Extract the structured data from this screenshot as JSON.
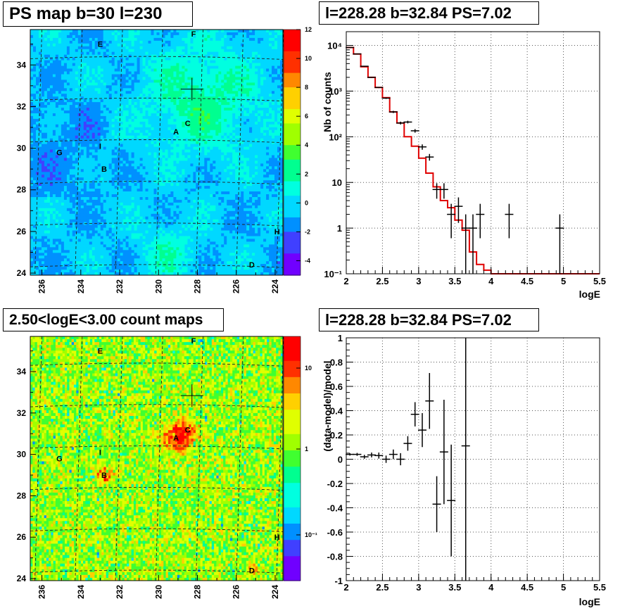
{
  "panels": {
    "ps_map": {
      "title": "PS map b=30 l=230"
    },
    "spectrum": {
      "title": "l=228.28 b=32.84 PS=7.02"
    },
    "count_map": {
      "title": "2.50<logE<3.00 count maps"
    },
    "residual": {
      "title": "l=228.28 b=32.84 PS=7.02"
    }
  },
  "colors": {
    "data": "#000000",
    "model": "#e00000",
    "grid": "#555555",
    "palette": [
      "#7000ff",
      "#4040ff",
      "#0090ff",
      "#00d8ff",
      "#00ffe0",
      "#00ff90",
      "#40ff30",
      "#a0ff00",
      "#e0ff00",
      "#ffd000",
      "#ff8800",
      "#ff3000",
      "#ff0000"
    ]
  },
  "chart_data": [
    {
      "id": "ps_map",
      "type": "heatmap",
      "title": "PS map b=30 l=230",
      "xticks": [
        "236",
        "234",
        "232",
        "230",
        "228",
        "226",
        "224"
      ],
      "yticks": [
        "24",
        "26",
        "28",
        "30",
        "32",
        "34"
      ],
      "xlim": [
        236.6,
        223.6
      ],
      "ylim": [
        23.9,
        35.7
      ],
      "colorbar_ticks": [
        "12",
        "10",
        "8",
        "6",
        "4",
        "2",
        "0",
        "-2",
        "-4"
      ],
      "zlim": [
        -5,
        12
      ],
      "sources": [
        {
          "label": "E",
          "l": 233.0,
          "b": 35.0
        },
        {
          "label": "F",
          "l": 228.2,
          "b": 35.5
        },
        {
          "label": "C",
          "l": 228.5,
          "b": 31.2
        },
        {
          "label": "A",
          "l": 229.1,
          "b": 30.8
        },
        {
          "label": "G",
          "l": 235.1,
          "b": 29.8
        },
        {
          "label": "I",
          "l": 233.0,
          "b": 30.1
        },
        {
          "label": "B",
          "l": 232.8,
          "b": 29.0
        },
        {
          "label": "H",
          "l": 223.9,
          "b": 26.0
        },
        {
          "label": "D",
          "l": 225.2,
          "b": 24.4
        }
      ],
      "crosshair": {
        "l": 228.28,
        "b": 32.84
      }
    },
    {
      "id": "spectrum",
      "type": "line",
      "title": "l=228.28 b=32.84 PS=7.02",
      "xlabel": "logE",
      "ylabel": "Nb of counts",
      "xlim": [
        2,
        5.5
      ],
      "ylim": [
        0.1,
        20000
      ],
      "yscale": "log",
      "xticks": [
        "2",
        "2.5",
        "3",
        "3.5",
        "4",
        "4.5",
        "5",
        "5.5"
      ],
      "yticks": [
        "10⁻¹",
        "1",
        "10",
        "10²",
        "10³",
        "10⁴"
      ],
      "grid": true,
      "series": [
        {
          "kind": "errorbars",
          "x": [
            2.05,
            2.15,
            2.25,
            2.35,
            2.45,
            2.55,
            2.65,
            2.75,
            2.85,
            2.95,
            3.05,
            3.15,
            3.25,
            3.35,
            3.45,
            3.55,
            3.65,
            3.75,
            3.85,
            4.25,
            4.95
          ],
          "y": [
            9000,
            6500,
            3500,
            2000,
            1200,
            700,
            350,
            200,
            210,
            135,
            60,
            36,
            7,
            7,
            2,
            3,
            1,
            1,
            2,
            2,
            1
          ],
          "yerr_lo": [
            95,
            80,
            59,
            45,
            35,
            26,
            19,
            14,
            14,
            12,
            8,
            6,
            2.6,
            2.6,
            1.4,
            1.7,
            1,
            1,
            1.4,
            1.4,
            1
          ],
          "yerr_hi": [
            95,
            80,
            59,
            45,
            35,
            26,
            19,
            14,
            14,
            12,
            8,
            6,
            2.6,
            2.6,
            1.4,
            1.7,
            1,
            1,
            1.4,
            1.4,
            1
          ]
        },
        {
          "kind": "step",
          "x_edges": [
            2.0,
            2.1,
            2.2,
            2.3,
            2.4,
            2.5,
            2.6,
            2.7,
            2.8,
            2.9,
            3.0,
            3.1,
            3.2,
            3.3,
            3.4,
            3.5,
            3.6,
            3.7,
            3.8,
            3.9,
            4.0,
            5.5
          ],
          "y": [
            9000,
            6500,
            3400,
            2000,
            1200,
            720,
            350,
            200,
            100,
            62,
            34,
            16,
            8,
            4,
            2.8,
            1.5,
            0.9,
            0.3,
            0.16,
            0.12,
            0.1
          ]
        }
      ]
    },
    {
      "id": "count_map",
      "type": "heatmap",
      "title": "2.50<logE<3.00 count maps",
      "xticks": [
        "236",
        "234",
        "232",
        "230",
        "228",
        "226",
        "224"
      ],
      "yticks": [
        "24",
        "26",
        "28",
        "30",
        "32",
        "34"
      ],
      "xlim": [
        236.6,
        223.6
      ],
      "ylim": [
        23.9,
        35.7
      ],
      "colorbar_ticks": [
        "10",
        "1",
        "10⁻¹"
      ],
      "zscale": "log",
      "sources": [
        {
          "label": "E",
          "l": 233.0,
          "b": 35.0
        },
        {
          "label": "F",
          "l": 228.2,
          "b": 35.5
        },
        {
          "label": "C",
          "l": 228.5,
          "b": 31.2
        },
        {
          "label": "A",
          "l": 229.1,
          "b": 30.8
        },
        {
          "label": "G",
          "l": 235.1,
          "b": 29.8
        },
        {
          "label": "I",
          "l": 233.0,
          "b": 30.1
        },
        {
          "label": "B",
          "l": 232.8,
          "b": 29.0
        },
        {
          "label": "H",
          "l": 223.9,
          "b": 26.0
        },
        {
          "label": "D",
          "l": 225.2,
          "b": 24.4
        }
      ],
      "crosshair": {
        "l": 228.28,
        "b": 32.84
      }
    },
    {
      "id": "residual",
      "type": "scatter",
      "title": "l=228.28 b=32.84 PS=7.02",
      "xlabel": "logE",
      "ylabel": "(data-model)/model",
      "xlim": [
        2,
        5.5
      ],
      "ylim": [
        -1,
        1
      ],
      "xticks": [
        "2",
        "2.5",
        "3",
        "3.5",
        "4",
        "4.5",
        "5",
        "5.5"
      ],
      "yticks": [
        "-1",
        "-0.8",
        "-0.6",
        "-0.4",
        "-0.2",
        "0",
        "0.2",
        "0.4",
        "0.6",
        "0.8",
        "1"
      ],
      "grid": true,
      "series": [
        {
          "kind": "errorbars",
          "x": [
            2.05,
            2.15,
            2.25,
            2.35,
            2.45,
            2.55,
            2.65,
            2.75,
            2.85,
            2.95,
            3.05,
            3.15,
            3.25,
            3.35,
            3.45,
            3.65
          ],
          "y": [
            0.04,
            0.04,
            0.02,
            0.035,
            0.03,
            0.0,
            0.04,
            0.0,
            0.13,
            0.37,
            0.24,
            0.48,
            -0.37,
            0.06,
            -0.34,
            0.11
          ],
          "yerr": [
            0.01,
            0.012,
            0.016,
            0.02,
            0.025,
            0.03,
            0.04,
            0.05,
            0.06,
            0.1,
            0.14,
            0.23,
            0.23,
            0.43,
            0.46,
            1.3
          ]
        }
      ]
    }
  ]
}
